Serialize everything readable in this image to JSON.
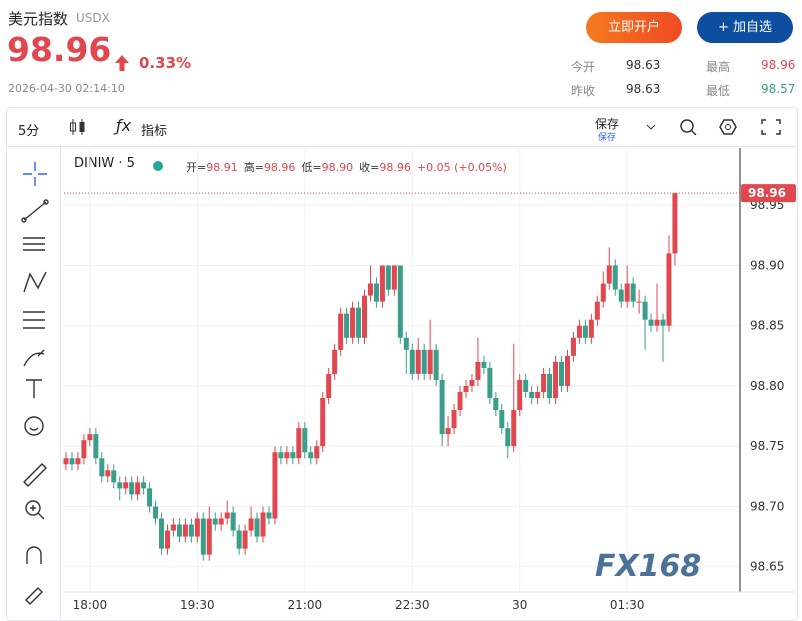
{
  "header": {
    "title": "美元指数",
    "symbol": "USDX",
    "price": 98.96,
    "change": "0.33%",
    "timestamp": "2026-04-30 02:14:10",
    "buttons": [
      "立即开户",
      "+ 加自选"
    ]
  },
  "stats": [
    {
      "label": "今开",
      "value": 98.63
    },
    {
      "label": "最高",
      "value": 98.96
    },
    {
      "label": "昨收",
      "value": 98.63
    },
    {
      "label": "最低",
      "value": 98.57
    }
  ],
  "toolbar": {
    "interval": "5分",
    "indicators": "指标",
    "save": "保存",
    "save_sub": "保存"
  },
  "chart_data": {
    "type": "candlestick",
    "symbol_label": "DINIW · 5",
    "ohlc_legend": [
      {
        "label": "开=",
        "value": "98.91"
      },
      {
        "label": "高=",
        "value": "98.96"
      },
      {
        "label": "低=",
        "value": "98.90"
      },
      {
        "label": "收=",
        "value": "98.96"
      }
    ],
    "change_label": "+0.05 (+0.05%)",
    "last_price": 98.96,
    "watermark": "FX168",
    "up_color": "#e0474f",
    "down_color": "#3a9e8a",
    "categories": [
      null,
      null,
      null,
      null,
      "18:00",
      null,
      null,
      null,
      null,
      null,
      null,
      null,
      null,
      null,
      null,
      null,
      null,
      null,
      null,
      null,
      null,
      null,
      "19:30",
      null,
      null,
      null,
      null,
      null,
      null,
      null,
      null,
      null,
      null,
      null,
      null,
      null,
      null,
      null,
      null,
      null,
      "21:00",
      null,
      null,
      null,
      null,
      null,
      null,
      null,
      null,
      null,
      null,
      null,
      null,
      null,
      null,
      null,
      null,
      null,
      "22:30",
      null,
      null,
      null,
      null,
      null,
      null,
      null,
      null,
      null,
      null,
      null,
      null,
      null,
      null,
      null,
      null,
      null,
      "30",
      null,
      null,
      null,
      null,
      null,
      null,
      null,
      null,
      null,
      null,
      null,
      null,
      null,
      null,
      null,
      null,
      null,
      "01:30",
      null,
      null,
      null,
      null,
      null,
      null,
      null,
      null
    ],
    "open": [
      98.735,
      98.74,
      98.735,
      98.74,
      98.755,
      98.76,
      98.74,
      98.725,
      98.73,
      98.72,
      98.715,
      98.72,
      98.71,
      98.72,
      98.715,
      98.7,
      98.69,
      98.665,
      98.68,
      98.685,
      98.675,
      98.685,
      98.675,
      98.69,
      98.66,
      98.69,
      98.685,
      98.69,
      98.695,
      98.68,
      98.665,
      98.68,
      98.69,
      98.675,
      98.695,
      98.69,
      98.745,
      98.74,
      98.745,
      98.74,
      98.765,
      98.745,
      98.74,
      98.75,
      98.79,
      98.81,
      98.83,
      98.86,
      98.84,
      98.865,
      98.84,
      98.875,
      98.885,
      98.87,
      98.9,
      98.88,
      98.9,
      98.84,
      98.83,
      98.81,
      98.83,
      98.81,
      98.83,
      98.805,
      98.76,
      98.765,
      98.78,
      98.795,
      98.8,
      98.805,
      98.82,
      98.815,
      98.79,
      98.78,
      98.765,
      98.75,
      98.78,
      98.805,
      98.795,
      98.79,
      98.795,
      98.81,
      98.79,
      98.82,
      98.8,
      98.825,
      98.84,
      98.85,
      98.84,
      98.855,
      98.87,
      98.885,
      98.9,
      98.88,
      98.87,
      98.885,
      98.87,
      98.87,
      98.855,
      98.85,
      98.855,
      98.85,
      98.91
    ],
    "high": [
      98.745,
      98.745,
      98.745,
      98.76,
      98.765,
      98.765,
      98.745,
      98.735,
      98.735,
      98.725,
      98.725,
      98.725,
      98.725,
      98.725,
      98.72,
      98.705,
      98.695,
      98.685,
      98.69,
      98.69,
      98.69,
      98.69,
      98.695,
      98.695,
      98.7,
      98.695,
      98.695,
      98.705,
      98.7,
      98.685,
      98.685,
      98.7,
      98.695,
      98.7,
      98.7,
      98.75,
      98.75,
      98.75,
      98.75,
      98.77,
      98.77,
      98.75,
      98.755,
      98.795,
      98.815,
      98.835,
      98.865,
      98.865,
      98.87,
      98.87,
      98.88,
      98.9,
      98.89,
      98.9,
      98.9,
      98.9,
      98.9,
      98.845,
      98.835,
      98.84,
      98.835,
      98.855,
      98.835,
      98.81,
      98.775,
      98.785,
      98.8,
      98.805,
      98.81,
      98.84,
      98.825,
      98.82,
      98.795,
      98.785,
      98.77,
      98.835,
      98.81,
      98.81,
      98.8,
      98.8,
      98.815,
      98.815,
      98.825,
      98.825,
      98.83,
      98.845,
      98.855,
      98.855,
      98.86,
      98.875,
      98.895,
      98.915,
      98.905,
      98.885,
      98.9,
      98.89,
      98.88,
      98.875,
      98.86,
      98.885,
      98.86,
      98.925,
      98.96
    ],
    "low": [
      98.73,
      98.73,
      98.73,
      98.735,
      98.75,
      98.735,
      98.72,
      98.72,
      98.715,
      98.705,
      98.71,
      98.705,
      98.705,
      98.71,
      98.695,
      98.685,
      98.66,
      98.66,
      98.675,
      98.67,
      98.67,
      98.67,
      98.67,
      98.655,
      98.655,
      98.68,
      98.68,
      98.685,
      98.675,
      98.66,
      98.66,
      98.675,
      98.67,
      98.67,
      98.685,
      98.685,
      98.735,
      98.735,
      98.735,
      98.735,
      98.74,
      98.735,
      98.735,
      98.745,
      98.785,
      98.805,
      98.825,
      98.835,
      98.835,
      98.835,
      98.835,
      98.87,
      98.865,
      98.865,
      98.875,
      98.875,
      98.835,
      98.81,
      98.805,
      98.805,
      98.805,
      98.805,
      98.8,
      98.75,
      98.75,
      98.76,
      98.775,
      98.79,
      98.795,
      98.8,
      98.81,
      98.785,
      98.775,
      98.76,
      98.74,
      98.745,
      98.775,
      98.79,
      98.785,
      98.785,
      98.79,
      98.785,
      98.785,
      98.795,
      98.795,
      98.82,
      98.835,
      98.835,
      98.835,
      98.85,
      98.865,
      98.88,
      98.875,
      98.865,
      98.865,
      98.865,
      98.86,
      98.83,
      98.845,
      98.845,
      98.82,
      98.845,
      98.9
    ],
    "close": [
      98.74,
      98.735,
      98.74,
      98.755,
      98.76,
      98.74,
      98.725,
      98.73,
      98.72,
      98.715,
      98.72,
      98.71,
      98.72,
      98.715,
      98.7,
      98.69,
      98.665,
      98.68,
      98.685,
      98.675,
      98.685,
      98.675,
      98.69,
      98.66,
      98.69,
      98.685,
      98.69,
      98.695,
      98.68,
      98.665,
      98.68,
      98.69,
      98.675,
      98.695,
      98.69,
      98.745,
      98.74,
      98.745,
      98.74,
      98.765,
      98.745,
      98.74,
      98.75,
      98.79,
      98.81,
      98.83,
      98.86,
      98.84,
      98.865,
      98.84,
      98.875,
      98.885,
      98.87,
      98.9,
      98.88,
      98.9,
      98.84,
      98.83,
      98.81,
      98.83,
      98.81,
      98.83,
      98.805,
      98.76,
      98.765,
      98.78,
      98.795,
      98.8,
      98.805,
      98.82,
      98.815,
      98.79,
      98.78,
      98.765,
      98.75,
      98.78,
      98.805,
      98.795,
      98.79,
      98.795,
      98.81,
      98.79,
      98.82,
      98.8,
      98.825,
      98.84,
      98.85,
      98.84,
      98.855,
      98.87,
      98.885,
      98.9,
      98.88,
      98.87,
      98.885,
      98.87,
      98.87,
      98.855,
      98.85,
      98.855,
      98.85,
      98.91,
      98.96
    ],
    "ylim": [
      98.629,
      98.9975
    ],
    "yticks": [
      98.65,
      {
        "value": 98.7,
        "label": "98.70"
      },
      98.75,
      {
        "value": 98.8,
        "label": "98.80"
      },
      98.85,
      {
        "value": 98.9,
        "label": "98.90"
      },
      98.95
    ],
    "grid": true
  }
}
